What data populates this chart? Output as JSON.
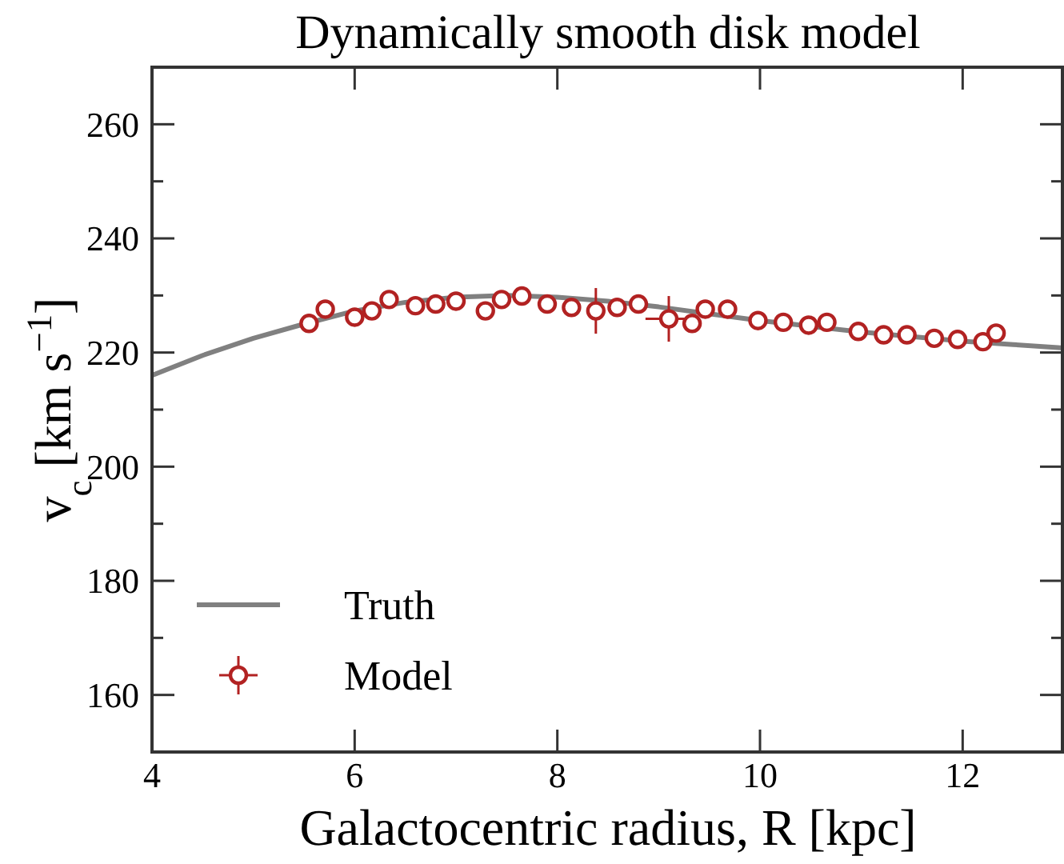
{
  "chart_data": {
    "type": "scatter",
    "title": "Dynamically smooth disk model",
    "xlabel": "Galactocentric radius, R [kpc]",
    "ylabel": "v$_{c}$ [km s$^{−1}$]",
    "xlim": [
      4,
      13
    ],
    "xticks": [
      4,
      6,
      8,
      10,
      12
    ],
    "ylim": [
      150,
      270
    ],
    "yticks": [
      {
        "value": 150,
        "label": null
      },
      160,
      {
        "value": 170,
        "label": null
      },
      180,
      {
        "value": 190,
        "label": null
      },
      200,
      {
        "value": 210,
        "label": null
      },
      220,
      {
        "value": 230,
        "label": null
      },
      240,
      {
        "value": 250,
        "label": null
      },
      260,
      {
        "value": 270,
        "label": null
      }
    ],
    "legend": "bottom left",
    "marker": "circle",
    "series": [
      {
        "name": "Truth",
        "type": "line",
        "color": "#808080",
        "marker": "none",
        "x": [
          4,
          4.5,
          5,
          5.5,
          6,
          6.5,
          7,
          7.5,
          8,
          8.5,
          9,
          9.5,
          10,
          10.5,
          11,
          11.5,
          12,
          12.5,
          13
        ],
        "values": [
          216,
          219.5,
          222.5,
          225,
          227.3,
          228.8,
          229.7,
          230,
          229.7,
          229,
          228,
          226.8,
          225.6,
          224.6,
          223.6,
          222.8,
          222,
          221.4,
          220.8
        ]
      },
      {
        "name": "Model",
        "color": "#b22222",
        "x": [
          5.55,
          5.71,
          6.0,
          6.17,
          6.34,
          6.6,
          6.8,
          7.0,
          7.29,
          7.45,
          7.65,
          7.9,
          8.14,
          8.38,
          8.59,
          8.8,
          9.1,
          9.33,
          9.46,
          9.68,
          9.98,
          10.23,
          10.48,
          10.66,
          10.97,
          11.22,
          11.45,
          11.72,
          11.95,
          12.2,
          12.33
        ],
        "values": [
          225.1,
          227.6,
          226.2,
          227.3,
          229.3,
          228.2,
          228.5,
          229,
          227.3,
          229.3,
          229.9,
          228.5,
          227.9,
          227.3,
          227.9,
          228.5,
          225.9,
          225.1,
          227.6,
          227.6,
          225.6,
          225.3,
          224.8,
          225.3,
          223.7,
          223.1,
          223.1,
          222.5,
          222.3,
          221.9,
          223.4
        ],
        "errors": [
          null,
          null,
          null,
          null,
          null,
          1.5,
          null,
          null,
          null,
          null,
          null,
          null,
          null,
          4,
          null,
          null,
          4,
          null,
          null,
          1,
          1.5,
          null,
          null,
          null,
          null,
          null,
          null,
          null,
          null,
          null,
          null
        ],
        "xerrors": [
          null,
          null,
          null,
          null,
          null,
          null,
          null,
          null,
          null,
          null,
          null,
          null,
          null,
          null,
          null,
          null,
          0.23,
          null,
          null,
          null,
          null,
          null,
          null,
          null,
          null,
          null,
          null,
          null,
          null,
          null,
          null
        ]
      }
    ]
  }
}
